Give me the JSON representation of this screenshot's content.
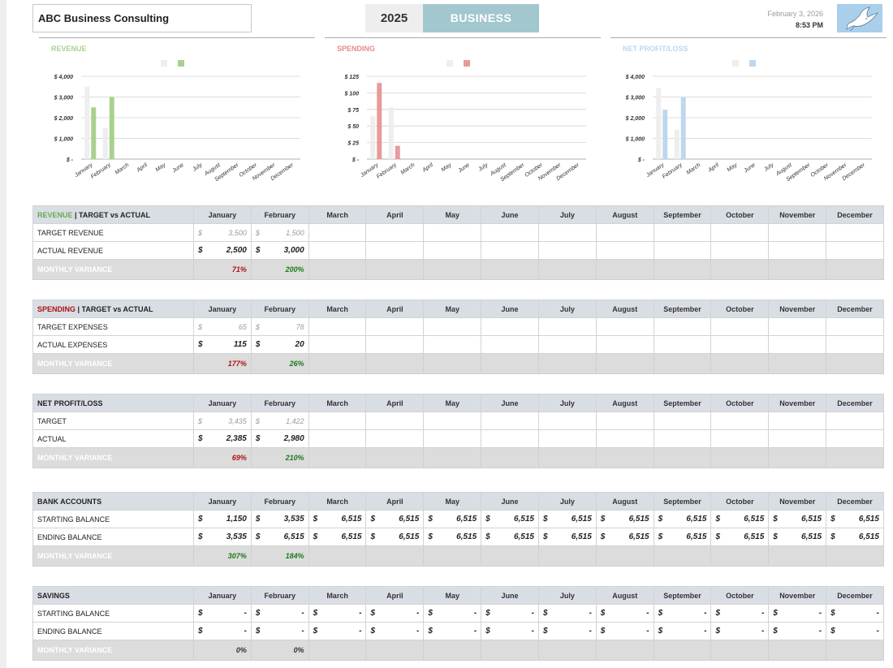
{
  "company": "ABC Business Consulting",
  "year": "2025",
  "business_label": "BUSINESS",
  "date": "February 3, 2026",
  "time": "8:53 PM",
  "months": [
    "January",
    "February",
    "March",
    "April",
    "May",
    "June",
    "July",
    "August",
    "September",
    "October",
    "November",
    "December"
  ],
  "colors": {
    "revenue": "#a9d18e",
    "spending": "#e89a9a",
    "net": "#bdd7ee",
    "target": "#eeeeee",
    "header": "#d9dee4",
    "variance_bg": "#dcdcdc"
  },
  "charts": [
    {
      "key": "revenue",
      "title": "REVENUE",
      "title_color": "#a9d18e",
      "actual_color": "#a9d18e",
      "chart_data": {
        "type": "bar",
        "categories": [
          "January",
          "February",
          "March",
          "April",
          "May",
          "June",
          "July",
          "August",
          "September",
          "October",
          "November",
          "December"
        ],
        "series": [
          {
            "values": [
              3500,
              1500,
              0,
              0,
              0,
              0,
              0,
              0,
              0,
              0,
              0,
              0
            ]
          },
          {
            "values": [
              2500,
              3000,
              0,
              0,
              0,
              0,
              0,
              0,
              0,
              0,
              0,
              0
            ]
          }
        ],
        "yticks": [
          "$ -",
          "$ 1,000",
          "$ 2,000",
          "$ 3,000",
          "$ 4,000"
        ],
        "ylim": [
          0,
          4000
        ]
      }
    },
    {
      "key": "spending",
      "title": "SPENDING",
      "title_color": "#e88a8a",
      "actual_color": "#e89a9a",
      "chart_data": {
        "type": "bar",
        "categories": [
          "January",
          "February",
          "March",
          "April",
          "May",
          "June",
          "July",
          "August",
          "September",
          "October",
          "November",
          "December"
        ],
        "series": [
          {
            "values": [
              65,
              78,
              0,
              0,
              0,
              0,
              0,
              0,
              0,
              0,
              0,
              0
            ]
          },
          {
            "values": [
              115,
              20,
              0,
              0,
              0,
              0,
              0,
              0,
              0,
              0,
              0,
              0
            ]
          }
        ],
        "yticks": [
          "$ -",
          "$ 25",
          "$ 50",
          "$ 75",
          "$ 100",
          "$ 125"
        ],
        "ylim": [
          0,
          125
        ]
      }
    },
    {
      "key": "net",
      "title": "NET PROFIT/LOSS",
      "title_color": "#bdd7ee",
      "actual_color": "#bdd7ee",
      "chart_data": {
        "type": "bar",
        "categories": [
          "January",
          "February",
          "March",
          "April",
          "May",
          "June",
          "July",
          "August",
          "September",
          "October",
          "November",
          "December"
        ],
        "series": [
          {
            "values": [
              3435,
              1422,
              0,
              0,
              0,
              0,
              0,
              0,
              0,
              0,
              0,
              0
            ]
          },
          {
            "values": [
              2385,
              2980,
              0,
              0,
              0,
              0,
              0,
              0,
              0,
              0,
              0,
              0
            ]
          }
        ],
        "yticks": [
          "$ -",
          "$ 1,000",
          "$ 2,000",
          "$ 3,000",
          "$ 4,000"
        ],
        "ylim": [
          0,
          4000
        ]
      }
    }
  ],
  "tables": [
    {
      "key": "revenue",
      "title_colored": "REVENUE",
      "title_color": "#6aa84f",
      "title_rest": " | TARGET vs ACTUAL",
      "rows": [
        {
          "label": "TARGET REVENUE",
          "kind": "tgt",
          "cells": [
            "3,500",
            "1,500",
            "",
            "",
            "",
            "",
            "",
            "",
            "",
            "",
            "",
            ""
          ]
        },
        {
          "label": "ACTUAL REVENUE",
          "kind": "act",
          "cells": [
            "2,500",
            "3,000",
            "",
            "",
            "",
            "",
            "",
            "",
            "",
            "",
            "",
            ""
          ]
        }
      ],
      "variance_label": "MONTHLY VARIANCE",
      "variance": [
        {
          "v": "71%",
          "c": "neg"
        },
        {
          "v": "200%",
          "c": "pos"
        }
      ]
    },
    {
      "key": "spending",
      "title_colored": "SPENDING",
      "title_color": "#b01010",
      "title_rest": " | TARGET vs ACTUAL",
      "rows": [
        {
          "label": "TARGET EXPENSES",
          "kind": "tgt",
          "cells": [
            "65",
            "78",
            "",
            "",
            "",
            "",
            "",
            "",
            "",
            "",
            "",
            ""
          ]
        },
        {
          "label": "ACTUAL EXPENSES",
          "kind": "act",
          "cells": [
            "115",
            "20",
            "",
            "",
            "",
            "",
            "",
            "",
            "",
            "",
            "",
            ""
          ]
        }
      ],
      "variance_label": "MONTHLY VARIANCE",
      "variance": [
        {
          "v": "177%",
          "c": "neg"
        },
        {
          "v": "26%",
          "c": "pos"
        }
      ]
    },
    {
      "key": "net",
      "title_colored": "",
      "title_color": "#222222",
      "title_rest": "NET PROFIT/LOSS",
      "rows": [
        {
          "label": "TARGET",
          "kind": "tgt",
          "cells": [
            "3,435",
            "1,422",
            "",
            "",
            "",
            "",
            "",
            "",
            "",
            "",
            "",
            ""
          ]
        },
        {
          "label": "ACTUAL",
          "kind": "act",
          "cells": [
            "2,385",
            "2,980",
            "",
            "",
            "",
            "",
            "",
            "",
            "",
            "",
            "",
            ""
          ]
        }
      ],
      "variance_label": "MONTHLY VARIANCE",
      "variance": [
        {
          "v": "69%",
          "c": "neg"
        },
        {
          "v": "210%",
          "c": "pos"
        }
      ]
    },
    {
      "key": "bank",
      "title_colored": "",
      "title_color": "#222222",
      "title_rest": "BANK ACCOUNTS",
      "rows": [
        {
          "label": "STARTING BALANCE",
          "kind": "act",
          "cells": [
            "1,150",
            "3,535",
            "6,515",
            "6,515",
            "6,515",
            "6,515",
            "6,515",
            "6,515",
            "6,515",
            "6,515",
            "6,515",
            "6,515"
          ]
        },
        {
          "label": "ENDING BALANCE",
          "kind": "act",
          "cells": [
            "3,535",
            "6,515",
            "6,515",
            "6,515",
            "6,515",
            "6,515",
            "6,515",
            "6,515",
            "6,515",
            "6,515",
            "6,515",
            "6,515"
          ]
        }
      ],
      "variance_label": "MONTHLY VARIANCE",
      "variance": [
        {
          "v": "307%",
          "c": "pos"
        },
        {
          "v": "184%",
          "c": "pos"
        }
      ]
    },
    {
      "key": "savings",
      "title_colored": "",
      "title_color": "#222222",
      "title_rest": "SAVINGS",
      "rows": [
        {
          "label": "STARTING BALANCE",
          "kind": "act",
          "cells": [
            "-",
            "-",
            "-",
            "-",
            "-",
            "-",
            "-",
            "-",
            "-",
            "-",
            "-",
            "-"
          ]
        },
        {
          "label": "ENDING BALANCE",
          "kind": "act",
          "cells": [
            "-",
            "-",
            "-",
            "-",
            "-",
            "-",
            "-",
            "-",
            "-",
            "-",
            "-",
            "-"
          ]
        }
      ],
      "variance_label": "MONTHLY VARIANCE",
      "variance": [
        {
          "v": "0%",
          "c": "plain"
        },
        {
          "v": "0%",
          "c": "plain"
        }
      ]
    }
  ]
}
